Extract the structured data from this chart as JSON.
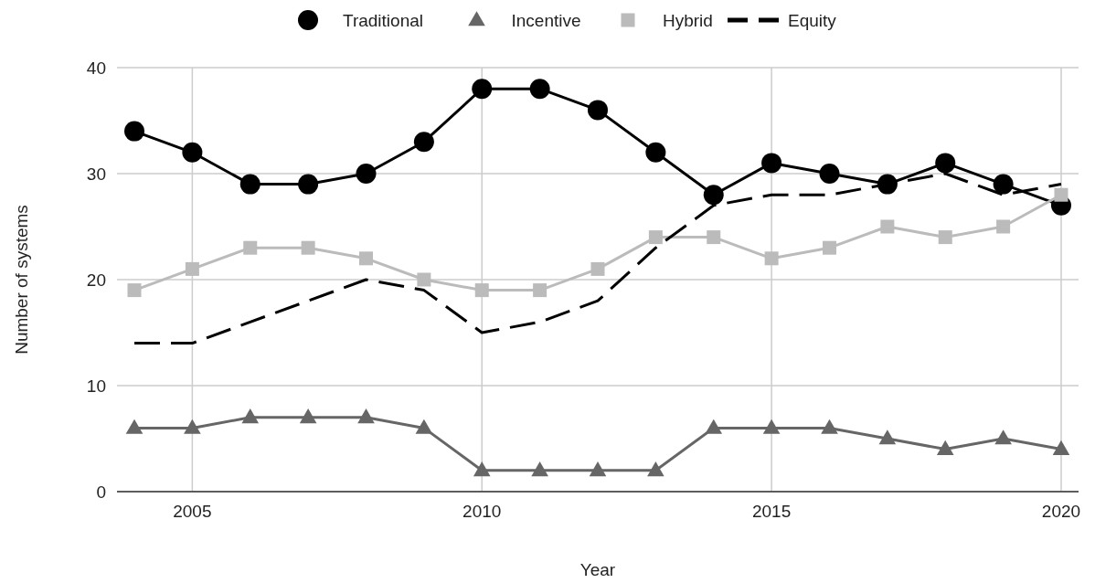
{
  "chart_data": {
    "type": "line",
    "xlabel": "Year",
    "ylabel": "Number of systems",
    "x": [
      2004,
      2005,
      2006,
      2007,
      2008,
      2009,
      2010,
      2011,
      2012,
      2013,
      2014,
      2015,
      2016,
      2017,
      2018,
      2019,
      2020
    ],
    "xlim": [
      2003.7,
      2020.3
    ],
    "xticks": [
      2005,
      2010,
      2015,
      2020
    ],
    "ylim": [
      0,
      40
    ],
    "yticks": [
      0,
      10,
      20,
      30,
      40
    ],
    "grid": true,
    "legend": "top",
    "series": [
      {
        "name": "Traditional",
        "color": "#000000",
        "marker": "circle",
        "line_style": "solid",
        "values": [
          34,
          32,
          29,
          29,
          30,
          33,
          38,
          38,
          36,
          32,
          28,
          31,
          30,
          29,
          31,
          29,
          27
        ]
      },
      {
        "name": "Incentive",
        "color": "#666666",
        "marker": "triangle",
        "line_style": "solid",
        "values": [
          6,
          6,
          7,
          7,
          7,
          6,
          2,
          2,
          2,
          2,
          6,
          6,
          6,
          5,
          4,
          5,
          4
        ]
      },
      {
        "name": "Hybrid",
        "color": "#bbbbbb",
        "marker": "square",
        "line_style": "solid",
        "values": [
          19,
          21,
          23,
          23,
          22,
          20,
          19,
          19,
          21,
          24,
          24,
          22,
          23,
          25,
          24,
          25,
          28
        ]
      },
      {
        "name": "Equity",
        "color": "#000000",
        "marker": "none",
        "line_style": "dashed",
        "values": [
          14,
          14,
          16,
          18,
          20,
          19,
          15,
          16,
          18,
          23,
          27,
          28,
          28,
          29,
          30,
          28,
          29
        ]
      }
    ]
  }
}
